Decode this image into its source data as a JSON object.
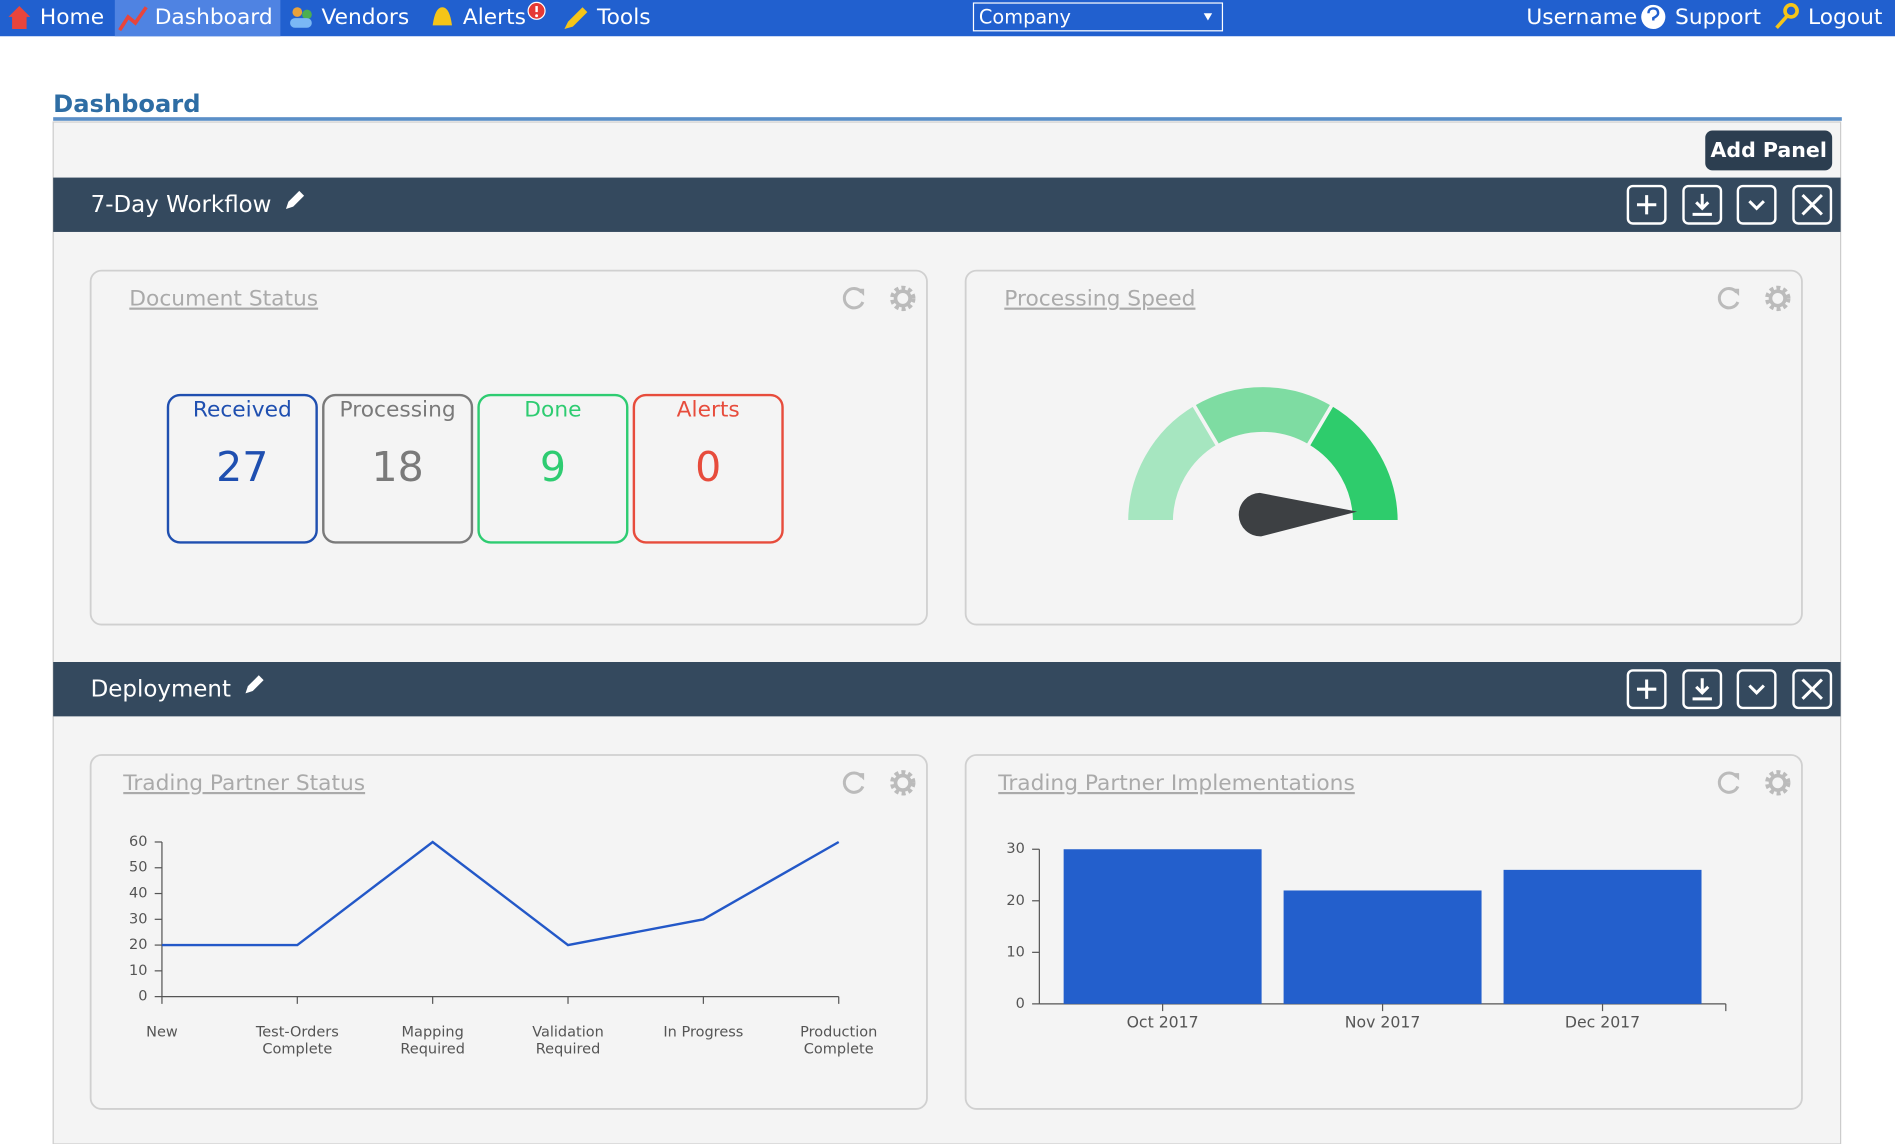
{
  "nav": {
    "items": [
      "Home",
      "Dashboard",
      "Vendors",
      "Alerts",
      "Tools"
    ],
    "company_select": "Company",
    "user": "Username",
    "support": "Support",
    "logout": "Logout"
  },
  "header": {
    "title": "Dashboard",
    "add_panel": "Add Panel"
  },
  "panels": [
    {
      "title": "7-Day Workflow",
      "widgets": [
        {
          "title": "Document Status",
          "statuses": [
            {
              "label": "Received",
              "value": 27,
              "color": "#1f4fb0"
            },
            {
              "label": "Processing",
              "value": 18,
              "color": "#7a7a7a"
            },
            {
              "label": "Done",
              "value": 9,
              "color": "#2ecc71"
            },
            {
              "label": "Alerts",
              "value": 0,
              "color": "#e74c3c"
            }
          ]
        },
        {
          "title": "Processing Speed",
          "chart_data": {
            "type": "gauge",
            "value": 99,
            "range": [
              0,
              100
            ],
            "bands": [
              0,
              33,
              67,
              100
            ],
            "colors": [
              "#a6e6c0",
              "#7edca2",
              "#2ecc6c"
            ],
            "needle_color": "#3d4043"
          }
        }
      ]
    },
    {
      "title": "Deployment",
      "widgets": [
        {
          "title": "Trading Partner Status",
          "chart_data": {
            "type": "line",
            "categories": [
              "New",
              "Test-Orders Complete",
              "Mapping Required",
              "Validation Required",
              "In Progress",
              "Production Complete"
            ],
            "values": [
              20,
              20,
              60,
              20,
              30,
              60
            ],
            "color": "#2358c8",
            "ylim": [
              0,
              60
            ],
            "yticks": [
              0,
              10,
              20,
              30,
              40,
              50,
              60
            ]
          }
        },
        {
          "title": "Trading Partner Implementations",
          "chart_data": {
            "type": "bar",
            "categories": [
              "Oct 2017",
              "Nov 2017",
              "Dec 2017"
            ],
            "values": [
              30,
              22,
              26
            ],
            "color": "#235fcc",
            "ylim": [
              0,
              30
            ],
            "yticks": [
              0,
              10,
              20,
              30
            ]
          }
        }
      ]
    }
  ]
}
